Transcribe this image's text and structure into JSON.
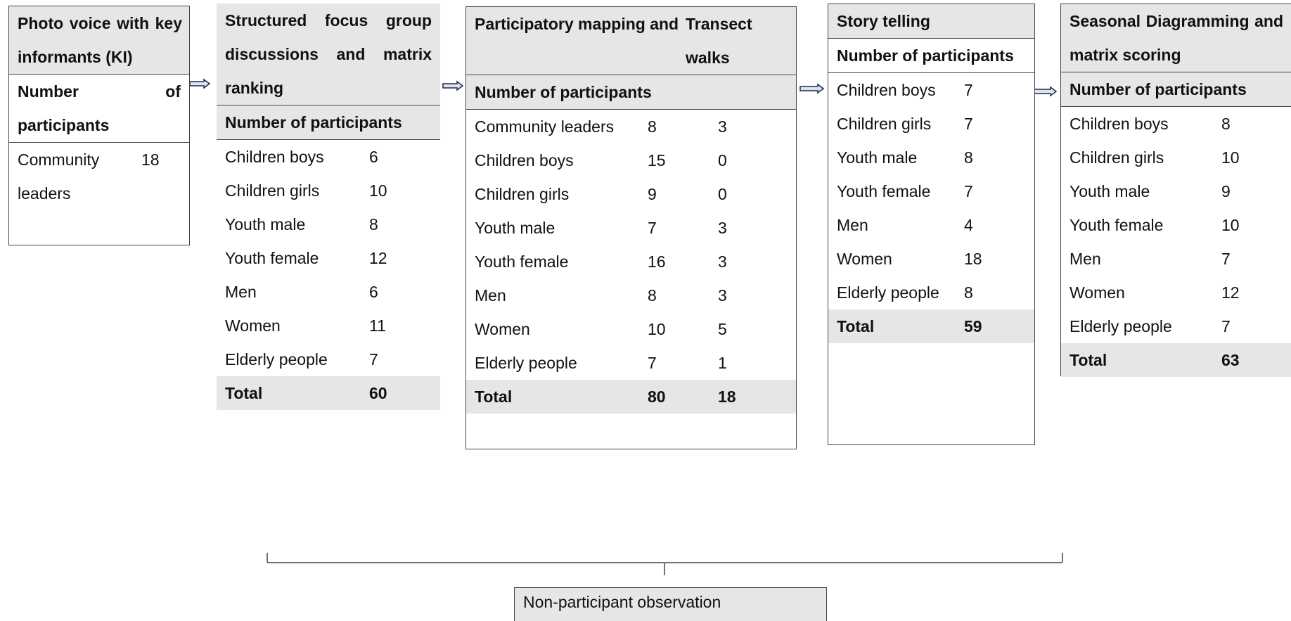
{
  "boxes": [
    {
      "title": [
        "Photo voice with key informants (KI)"
      ],
      "header": "Number of participants",
      "rows": [
        {
          "label": "Community leaders",
          "values": [
            18
          ]
        }
      ]
    },
    {
      "title": [
        "Structured focus group discussions and matrix ranking"
      ],
      "header": "Number of participants",
      "rows": [
        {
          "label": "Children boys",
          "values": [
            6
          ]
        },
        {
          "label": "Children girls",
          "values": [
            10
          ]
        },
        {
          "label": "Youth male",
          "values": [
            8
          ]
        },
        {
          "label": "Youth female",
          "values": [
            12
          ]
        },
        {
          "label": "Men",
          "values": [
            6
          ]
        },
        {
          "label": "Women",
          "values": [
            11
          ]
        },
        {
          "label": "Elderly people",
          "values": [
            7
          ]
        }
      ],
      "total": {
        "label": "Total",
        "values": [
          60
        ]
      }
    },
    {
      "title": [
        "Participatory mapping and",
        "Transect walks"
      ],
      "header": "Number of participants",
      "rows": [
        {
          "label": "Community leaders",
          "values": [
            8,
            3
          ]
        },
        {
          "label": "Children boys",
          "values": [
            15,
            0
          ]
        },
        {
          "label": "Children girls",
          "values": [
            9,
            0
          ]
        },
        {
          "label": "Youth male",
          "values": [
            7,
            3
          ]
        },
        {
          "label": "Youth female",
          "values": [
            16,
            3
          ]
        },
        {
          "label": "Men",
          "values": [
            8,
            3
          ]
        },
        {
          "label": "Women",
          "values": [
            10,
            5
          ]
        },
        {
          "label": "Elderly people",
          "values": [
            7,
            1
          ]
        }
      ],
      "total": {
        "label": "Total",
        "values": [
          80,
          18
        ]
      }
    },
    {
      "title": [
        "Story telling"
      ],
      "header": "Number of participants",
      "rows": [
        {
          "label": "Children boys",
          "values": [
            7
          ]
        },
        {
          "label": "Children girls",
          "values": [
            7
          ]
        },
        {
          "label": "Youth male",
          "values": [
            8
          ]
        },
        {
          "label": "Youth female",
          "values": [
            7
          ]
        },
        {
          "label": "Men",
          "values": [
            4
          ]
        },
        {
          "label": "Women",
          "values": [
            18
          ]
        },
        {
          "label": "Elderly people",
          "values": [
            8
          ]
        }
      ],
      "total": {
        "label": "Total",
        "values": [
          59
        ]
      }
    },
    {
      "title": [
        "Seasonal Diagramming and matrix scoring"
      ],
      "header": "Number of participants",
      "rows": [
        {
          "label": "Children boys",
          "values": [
            8
          ]
        },
        {
          "label": "Children girls",
          "values": [
            10
          ]
        },
        {
          "label": "Youth male",
          "values": [
            9
          ]
        },
        {
          "label": "Youth female",
          "values": [
            10
          ]
        },
        {
          "label": "Men",
          "values": [
            7
          ]
        },
        {
          "label": "Women",
          "values": [
            12
          ]
        },
        {
          "label": "Elderly people",
          "values": [
            7
          ]
        }
      ],
      "total": {
        "label": "Total",
        "values": [
          63
        ]
      }
    }
  ],
  "observation": "Non-participant observation"
}
